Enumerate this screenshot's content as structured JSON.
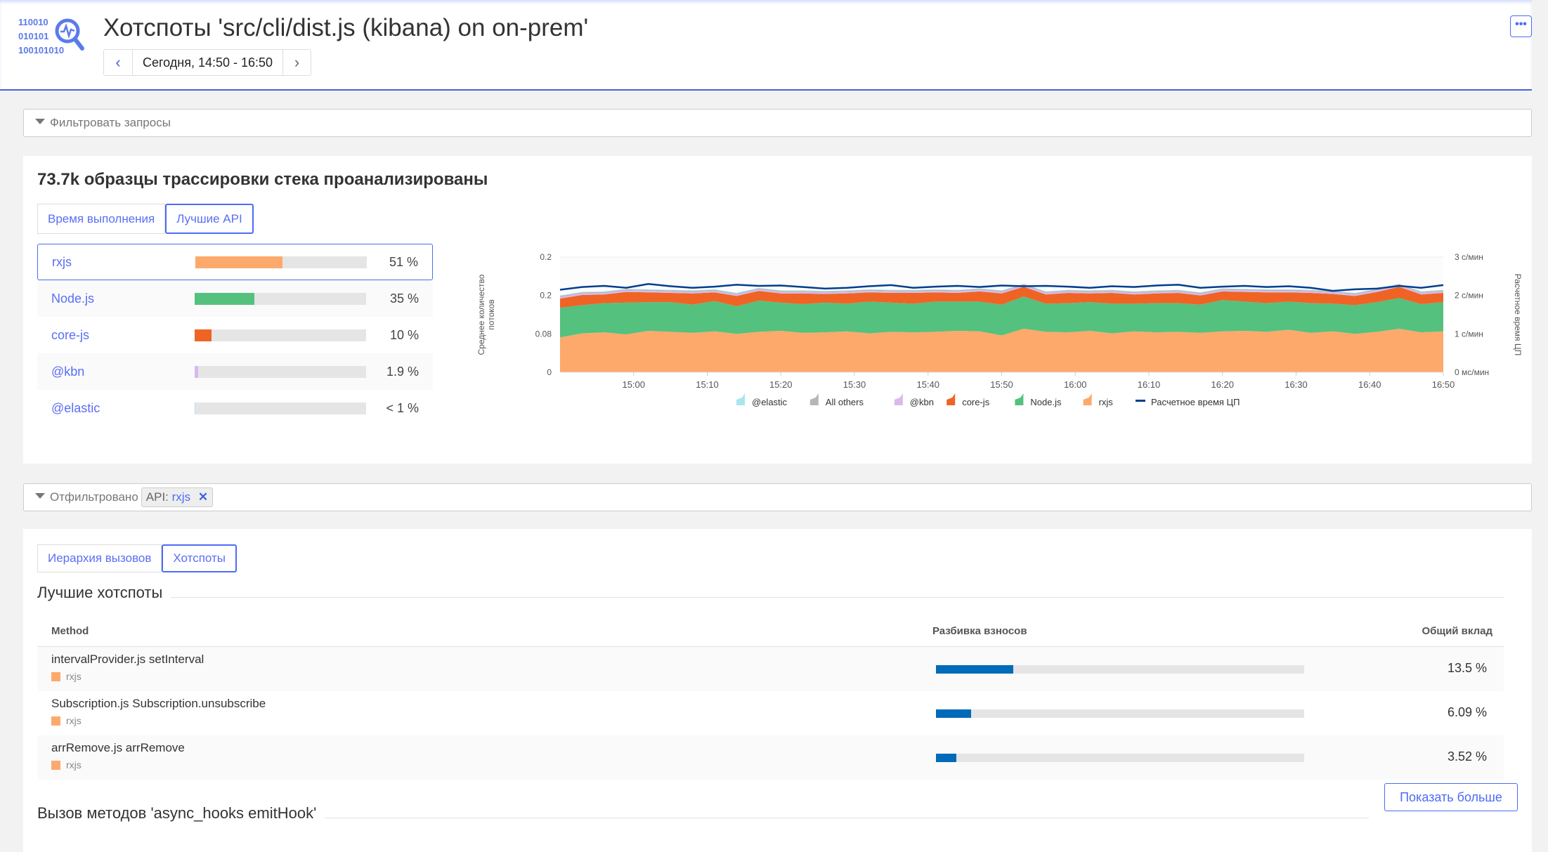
{
  "header": {
    "logo_text": [
      "110010",
      "010101",
      "100101010"
    ],
    "title": "Хотспоты 'src/cli/dist.js (kibana) on on-prem'",
    "time_range": "Сегодня, 14:50 - 16:50",
    "more_label": "•••"
  },
  "filter": {
    "placeholder": "Фильтровать запросы"
  },
  "summary": {
    "title": "73.7k образцы трассировки стека проанализированы",
    "tabs": [
      {
        "label": "Время выполнения",
        "active": false
      },
      {
        "label": "Лучшие API",
        "active": true
      }
    ],
    "apis": [
      {
        "name": "rxjs",
        "percent_label": "51 %",
        "value": 51,
        "color": "#fda96b",
        "selected": true
      },
      {
        "name": "Node.js",
        "percent_label": "35 %",
        "value": 35,
        "color": "#54c17e"
      },
      {
        "name": "core-js",
        "percent_label": "10 %",
        "value": 10,
        "color": "#ef6425"
      },
      {
        "name": "@kbn",
        "percent_label": "1.9 %",
        "value": 1.9,
        "color": "#d9b8ee"
      },
      {
        "name": "@elastic",
        "percent_label": "< 1 %",
        "value": 0.3,
        "color": "#a8e6ed"
      }
    ]
  },
  "chart_data": {
    "type": "area",
    "stacked": true,
    "ylabel": "Среднее количество потоков",
    "y2label": "Расчетное время ЦП",
    "yticks": [
      "0",
      "0.08",
      "0.2",
      "0.2"
    ],
    "ylim": [
      0,
      0.225
    ],
    "y2ticks": [
      "0 мс/мин",
      "1 с/мин",
      "2 с/мин",
      "3 с/мин"
    ],
    "y2lim": [
      0,
      3
    ],
    "xlim": [
      "14:50",
      "16:50"
    ],
    "xticks": [
      "15:00",
      "15:10",
      "15:20",
      "15:30",
      "15:40",
      "15:50",
      "16:00",
      "16:10",
      "16:20",
      "16:30",
      "16:40",
      "16:50"
    ],
    "grid": "horizontal",
    "legend_position": "bottom",
    "x_step_minutes": 3,
    "series": [
      {
        "name": "rxjs",
        "color": "#fda96b",
        "values": [
          0.068,
          0.076,
          0.078,
          0.074,
          0.081,
          0.079,
          0.077,
          0.08,
          0.075,
          0.079,
          0.081,
          0.077,
          0.078,
          0.08,
          0.076,
          0.079,
          0.078,
          0.079,
          0.081,
          0.08,
          0.072,
          0.085,
          0.079,
          0.078,
          0.081,
          0.076,
          0.08,
          0.078,
          0.079,
          0.077,
          0.08,
          0.081,
          0.079,
          0.083,
          0.077,
          0.08,
          0.075,
          0.079,
          0.085,
          0.078,
          0.08
        ]
      },
      {
        "name": "Node.js",
        "color": "#54c17e",
        "values": [
          0.058,
          0.055,
          0.057,
          0.062,
          0.056,
          0.058,
          0.055,
          0.059,
          0.054,
          0.061,
          0.055,
          0.056,
          0.058,
          0.054,
          0.062,
          0.057,
          0.056,
          0.059,
          0.057,
          0.058,
          0.06,
          0.063,
          0.055,
          0.057,
          0.056,
          0.058,
          0.054,
          0.057,
          0.056,
          0.055,
          0.061,
          0.057,
          0.056,
          0.055,
          0.058,
          0.054,
          0.056,
          0.058,
          0.06,
          0.055,
          0.057
        ]
      },
      {
        "name": "core-js",
        "color": "#ef6425",
        "values": [
          0.018,
          0.02,
          0.017,
          0.021,
          0.019,
          0.018,
          0.022,
          0.017,
          0.02,
          0.019,
          0.018,
          0.021,
          0.017,
          0.02,
          0.018,
          0.019,
          0.021,
          0.018,
          0.017,
          0.02,
          0.022,
          0.019,
          0.018,
          0.02,
          0.017,
          0.021,
          0.018,
          0.019,
          0.02,
          0.018,
          0.017,
          0.019,
          0.021,
          0.018,
          0.02,
          0.019,
          0.018,
          0.02,
          0.022,
          0.019,
          0.018
        ]
      },
      {
        "name": "@kbn",
        "color": "#d9b8ee",
        "values": [
          0.003,
          0.003,
          0.003,
          0.003,
          0.003,
          0.003,
          0.003,
          0.003,
          0.003,
          0.003,
          0.003,
          0.003,
          0.003,
          0.003,
          0.003,
          0.003,
          0.003,
          0.003,
          0.003,
          0.003,
          0.003,
          0.003,
          0.003,
          0.003,
          0.003,
          0.003,
          0.003,
          0.003,
          0.003,
          0.003,
          0.003,
          0.003,
          0.003,
          0.003,
          0.003,
          0.003,
          0.003,
          0.003,
          0.003,
          0.003,
          0.003
        ]
      },
      {
        "name": "All others",
        "color": "#b6b6b6",
        "values": [
          0.002,
          0.002,
          0.002,
          0.002,
          0.002,
          0.002,
          0.002,
          0.002,
          0.002,
          0.002,
          0.002,
          0.002,
          0.002,
          0.002,
          0.002,
          0.002,
          0.002,
          0.002,
          0.002,
          0.002,
          0.002,
          0.002,
          0.002,
          0.002,
          0.002,
          0.002,
          0.002,
          0.002,
          0.002,
          0.002,
          0.002,
          0.002,
          0.002,
          0.002,
          0.002,
          0.002,
          0.002,
          0.002,
          0.002,
          0.002,
          0.002
        ]
      },
      {
        "name": "@elastic",
        "color": "#a8e6ed",
        "values": [
          0.001,
          0.001,
          0.001,
          0.001,
          0.001,
          0.001,
          0.001,
          0.001,
          0.001,
          0.001,
          0.001,
          0.001,
          0.001,
          0.001,
          0.001,
          0.001,
          0.001,
          0.001,
          0.001,
          0.001,
          0.001,
          0.001,
          0.001,
          0.001,
          0.001,
          0.001,
          0.001,
          0.001,
          0.001,
          0.001,
          0.001,
          0.001,
          0.001,
          0.001,
          0.001,
          0.001,
          0.001,
          0.001,
          0.001,
          0.001,
          0.001
        ]
      }
    ],
    "line": {
      "name": "Расчетное время ЦП",
      "color": "#003e8f",
      "axis": "right",
      "values": [
        2.15,
        2.22,
        2.25,
        2.2,
        2.3,
        2.24,
        2.2,
        2.23,
        2.28,
        2.25,
        2.26,
        2.22,
        2.18,
        2.2,
        2.24,
        2.27,
        2.2,
        2.23,
        2.25,
        2.22,
        2.26,
        2.24,
        2.25,
        2.23,
        2.2,
        2.24,
        2.22,
        2.26,
        2.28,
        2.2,
        2.23,
        2.25,
        2.22,
        2.24,
        2.2,
        2.12,
        2.16,
        2.18,
        2.25,
        2.2,
        2.27
      ]
    },
    "legend": [
      "@elastic",
      "All others",
      "@kbn",
      "core-js",
      "Node.js",
      "rxjs",
      "Расчетное время ЦП"
    ]
  },
  "filtered": {
    "label": "Отфильтровано",
    "chip_key": "API:",
    "chip_value": "rxjs",
    "chip_close": "✕"
  },
  "hotspots": {
    "tabs": [
      {
        "label": "Иерархия вызовов",
        "active": false
      },
      {
        "label": "Хотспоты",
        "active": true
      }
    ],
    "section_title": "Лучшие хотспоты",
    "columns": [
      "Method",
      "Разбивка взносов",
      "Общий вклад"
    ],
    "rows": [
      {
        "method": "intervalProvider.js setInterval",
        "api": "rxjs",
        "percent_label": "13.5 %",
        "value": 13.5
      },
      {
        "method": "Subscription.js Subscription.unsubscribe",
        "api": "rxjs",
        "percent_label": "6.09 %",
        "value": 6.09
      },
      {
        "method": "arrRemove.js arrRemove",
        "api": "rxjs",
        "percent_label": "3.52 %",
        "value": 3.52
      }
    ],
    "show_more": "Показать больше",
    "next_section_title": "Вызов методов 'async_hooks emitHook'"
  }
}
